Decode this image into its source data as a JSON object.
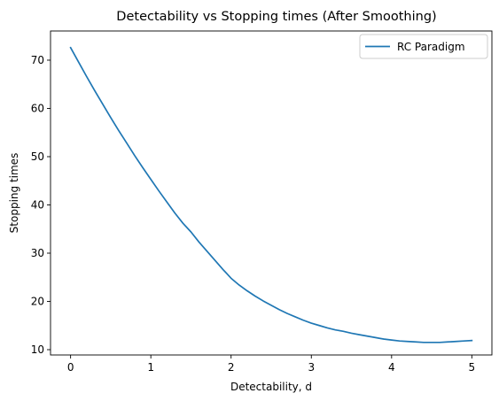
{
  "chart_data": {
    "type": "line",
    "title": "Detectability vs Stopping times (After Smoothing)",
    "xlabel": "Detectability, d",
    "ylabel": "Stopping times",
    "xlim": [
      -0.25,
      5.25
    ],
    "ylim": [
      8.9,
      76.05
    ],
    "xticks": [
      0,
      1,
      2,
      3,
      4,
      5
    ],
    "yticks": [
      10,
      20,
      30,
      40,
      50,
      60,
      70
    ],
    "grid": false,
    "legend_position": "top-right",
    "series": [
      {
        "name": "RC Paradigm",
        "color": "#1f77b4",
        "x": [
          0.0,
          0.1,
          0.2,
          0.3,
          0.4,
          0.5,
          0.6,
          0.7,
          0.8,
          0.9,
          1.0,
          1.1,
          1.2,
          1.3,
          1.4,
          1.5,
          1.6,
          1.7,
          1.8,
          1.9,
          2.0,
          2.1,
          2.2,
          2.3,
          2.4,
          2.5,
          2.6,
          2.7,
          2.8,
          2.9,
          3.0,
          3.1,
          3.2,
          3.3,
          3.4,
          3.5,
          3.6,
          3.7,
          3.8,
          3.9,
          4.0,
          4.1,
          4.2,
          4.3,
          4.4,
          4.5,
          4.6,
          4.7,
          4.8,
          4.9,
          5.0
        ],
        "y": [
          72.6,
          69.6,
          66.6,
          63.7,
          60.9,
          58.1,
          55.4,
          52.8,
          50.2,
          47.7,
          45.3,
          42.9,
          40.6,
          38.3,
          36.2,
          34.4,
          32.3,
          30.4,
          28.5,
          26.6,
          24.8,
          23.4,
          22.2,
          21.1,
          20.1,
          19.2,
          18.3,
          17.5,
          16.8,
          16.1,
          15.5,
          15.0,
          14.5,
          14.1,
          13.8,
          13.4,
          13.1,
          12.8,
          12.5,
          12.2,
          12.0,
          11.8,
          11.7,
          11.6,
          11.5,
          11.5,
          11.5,
          11.6,
          11.7,
          11.8,
          11.9
        ]
      }
    ]
  }
}
